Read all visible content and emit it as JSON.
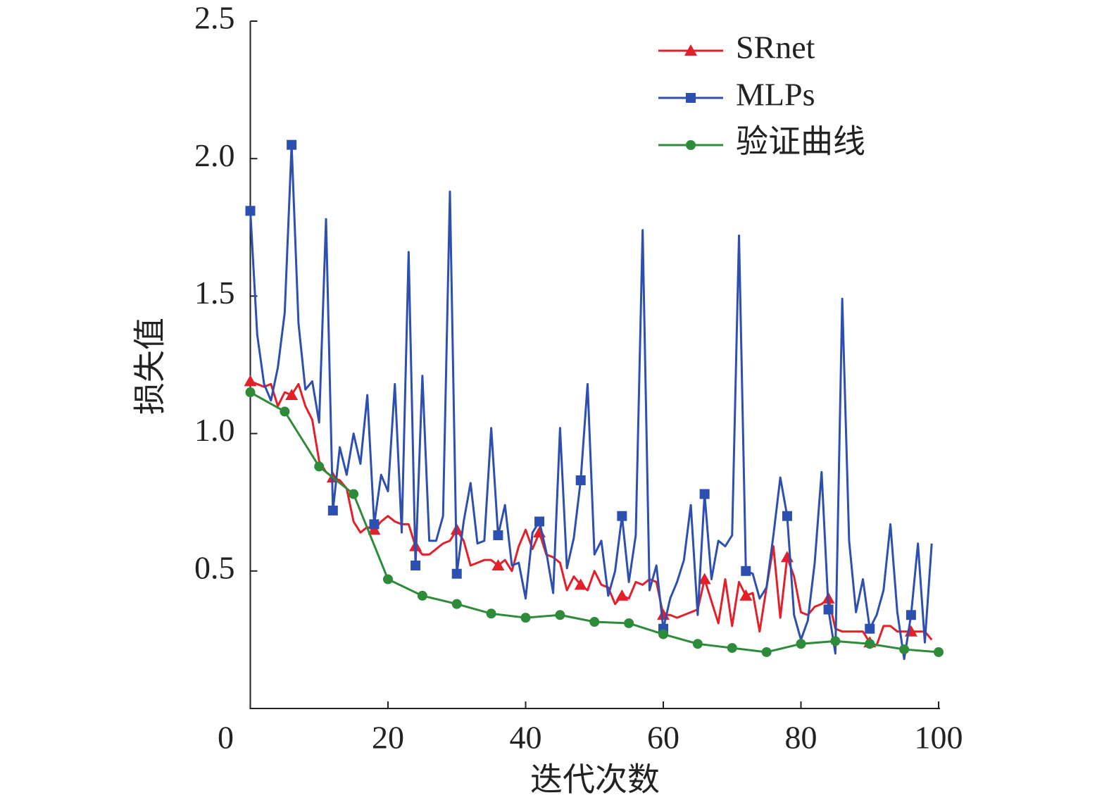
{
  "chart_data": {
    "type": "line",
    "x_label": "迭代次数",
    "y_label": "损失值",
    "xlim": [
      0,
      100
    ],
    "xticks": [
      0,
      20,
      40,
      60,
      80,
      100
    ],
    "ylim": [
      0,
      2.5
    ],
    "yticks": [
      0.5,
      {
        "value": 1,
        "label": "1.0"
      },
      1.5,
      {
        "value": 2,
        "label": "2.0"
      },
      2.5
    ],
    "legend": "upper right",
    "grid": false,
    "series": [
      {
        "name": "SRnet",
        "color": "#e3202a",
        "marker": "triangle",
        "x": [
          0,
          1,
          2,
          3,
          4,
          5,
          6,
          7,
          8,
          9,
          10,
          11,
          12,
          13,
          14,
          15,
          16,
          17,
          18,
          19,
          20,
          21,
          22,
          23,
          24,
          25,
          26,
          27,
          28,
          29,
          30,
          31,
          32,
          33,
          34,
          35,
          36,
          37,
          38,
          39,
          40,
          41,
          42,
          43,
          44,
          45,
          46,
          47,
          48,
          49,
          50,
          51,
          52,
          53,
          54,
          55,
          56,
          57,
          58,
          59,
          60,
          61,
          62,
          63,
          64,
          65,
          66,
          67,
          68,
          69,
          70,
          71,
          72,
          73,
          74,
          75,
          76,
          77,
          78,
          79,
          80,
          81,
          82,
          83,
          84,
          85,
          86,
          87,
          88,
          89,
          90,
          91,
          92,
          93,
          94,
          95,
          96,
          97,
          98,
          99
        ],
        "values": [
          1.19,
          1.18,
          1.17,
          1.18,
          1.1,
          1.15,
          1.14,
          1.18,
          1.1,
          1.05,
          0.9,
          0.86,
          0.84,
          0.83,
          0.8,
          0.68,
          0.64,
          0.66,
          0.65,
          0.68,
          0.7,
          0.68,
          0.67,
          0.67,
          0.59,
          0.56,
          0.56,
          0.58,
          0.6,
          0.61,
          0.65,
          0.61,
          0.52,
          0.53,
          0.54,
          0.54,
          0.52,
          0.54,
          0.5,
          0.59,
          0.65,
          0.58,
          0.64,
          0.56,
          0.55,
          0.53,
          0.43,
          0.48,
          0.45,
          0.43,
          0.5,
          0.45,
          0.44,
          0.38,
          0.41,
          0.4,
          0.46,
          0.45,
          0.47,
          0.46,
          0.34,
          0.34,
          0.33,
          0.34,
          0.35,
          0.36,
          0.47,
          0.39,
          0.31,
          0.47,
          0.3,
          0.46,
          0.41,
          0.42,
          0.28,
          0.44,
          0.59,
          0.33,
          0.55,
          0.48,
          0.35,
          0.34,
          0.37,
          0.38,
          0.4,
          0.29,
          0.28,
          0.28,
          0.28,
          0.28,
          0.24,
          0.23,
          0.3,
          0.3,
          0.28,
          0.28,
          0.28,
          0.28,
          0.28,
          0.25
        ]
      },
      {
        "name": "MLPs",
        "color": "#2c4fb0",
        "marker": "square",
        "x": [
          0,
          1,
          2,
          3,
          4,
          5,
          6,
          7,
          8,
          9,
          10,
          11,
          12,
          13,
          14,
          15,
          16,
          17,
          18,
          19,
          20,
          21,
          22,
          23,
          24,
          25,
          26,
          27,
          28,
          29,
          30,
          31,
          32,
          33,
          34,
          35,
          36,
          37,
          38,
          39,
          40,
          41,
          42,
          43,
          44,
          45,
          46,
          47,
          48,
          49,
          50,
          51,
          52,
          53,
          54,
          55,
          56,
          57,
          58,
          59,
          60,
          61,
          62,
          63,
          64,
          65,
          66,
          67,
          68,
          69,
          70,
          71,
          72,
          73,
          74,
          75,
          76,
          77,
          78,
          79,
          80,
          81,
          82,
          83,
          84,
          85,
          86,
          87,
          88,
          89,
          90,
          91,
          92,
          93,
          94,
          95,
          96,
          97,
          98,
          99
        ],
        "values": [
          1.81,
          1.36,
          1.18,
          1.12,
          1.24,
          1.44,
          2.05,
          1.4,
          1.16,
          1.19,
          1.04,
          1.78,
          0.72,
          0.95,
          0.85,
          1.0,
          0.89,
          1.14,
          0.67,
          0.85,
          0.79,
          1.18,
          0.64,
          1.66,
          0.52,
          1.21,
          0.61,
          0.61,
          0.7,
          1.88,
          0.49,
          0.68,
          0.82,
          0.6,
          0.61,
          1.02,
          0.63,
          0.74,
          0.52,
          0.53,
          0.4,
          0.64,
          0.68,
          0.57,
          0.42,
          1.02,
          0.51,
          0.62,
          0.83,
          1.18,
          0.56,
          0.61,
          0.41,
          0.5,
          0.7,
          0.46,
          0.63,
          1.74,
          0.43,
          0.52,
          0.29,
          0.4,
          0.46,
          0.54,
          0.74,
          0.34,
          0.78,
          0.47,
          0.61,
          0.59,
          0.63,
          1.72,
          0.5,
          0.49,
          0.4,
          0.44,
          0.63,
          0.84,
          0.7,
          0.34,
          0.25,
          0.32,
          0.53,
          0.86,
          0.36,
          0.2,
          1.49,
          0.61,
          0.35,
          0.47,
          0.29,
          0.34,
          0.43,
          0.67,
          0.35,
          0.18,
          0.34,
          0.6,
          0.24,
          0.6
        ]
      },
      {
        "name": "验证曲线",
        "color": "#2e8b3a",
        "marker": "circle",
        "x": [
          0,
          5,
          10,
          15,
          20,
          25,
          30,
          35,
          40,
          45,
          50,
          55,
          60,
          65,
          70,
          75,
          80,
          85,
          90,
          95,
          100
        ],
        "values": [
          1.15,
          1.08,
          0.88,
          0.78,
          0.47,
          0.41,
          0.38,
          0.345,
          0.33,
          0.34,
          0.315,
          0.31,
          0.27,
          0.235,
          0.22,
          0.205,
          0.235,
          0.245,
          0.235,
          0.215,
          0.205
        ]
      }
    ]
  }
}
